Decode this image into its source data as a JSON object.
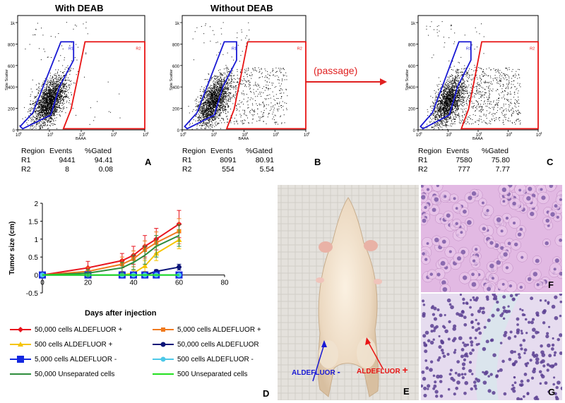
{
  "flow_panels": [
    {
      "title": "With DEAB",
      "letter": "A",
      "stats": {
        "header": [
          "Region",
          "Events",
          "%Gated"
        ],
        "rows": [
          [
            "R1",
            "9441",
            "94.41"
          ],
          [
            "R2",
            "8",
            "0.08"
          ]
        ]
      }
    },
    {
      "title": "Without DEAB",
      "letter": "B",
      "stats": {
        "header": [
          "Region",
          "Events",
          "%Gated"
        ],
        "rows": [
          [
            "R1",
            "8091",
            "80.91"
          ],
          [
            "R2",
            "554",
            "5.54"
          ]
        ]
      }
    },
    {
      "title": "",
      "letter": "C",
      "stats": {
        "header": [
          "Region",
          "Events",
          "%Gated"
        ],
        "rows": [
          [
            "R1",
            "7580",
            "75.80"
          ],
          [
            "R2",
            "777",
            "7.77"
          ]
        ]
      }
    }
  ],
  "flow_axes": {
    "y_label": "Side Scatter",
    "x_label": "BAAA",
    "y_ticks": [
      "1k",
      "800",
      "600",
      "400",
      "200",
      "0"
    ],
    "x_ticks": [
      "10",
      "0",
      "10",
      "1",
      "10",
      "2",
      "10",
      "3",
      "10",
      "4"
    ],
    "region_labels": [
      "R1",
      "R2"
    ]
  },
  "passage_label": "(passage)",
  "colors": {
    "r1_gate": "#1a1ad4",
    "r2_gate": "#e81414",
    "arrow": "#e02020"
  },
  "chart_data": {
    "type": "line",
    "ylabel": "Tumor size (cm)",
    "xlabel": "Days after injection",
    "xlim": [
      0,
      80
    ],
    "ylim": [
      -0.5,
      2
    ],
    "x_ticks": [
      "0",
      "20",
      "40",
      "60",
      "80"
    ],
    "y_ticks": [
      "2",
      "1.5",
      "1",
      "0.5",
      "0",
      "-0.5"
    ],
    "x": [
      0,
      20,
      35,
      40,
      45,
      50,
      60
    ],
    "series": [
      {
        "name": "50,000 cells ALDEFLUOR +",
        "color": "#e8141e",
        "marker": "diamond",
        "values": [
          0,
          0.2,
          0.4,
          0.55,
          0.8,
          1.0,
          1.42
        ],
        "err": [
          0,
          0.18,
          0.2,
          0.25,
          0.3,
          0.3,
          0.38
        ]
      },
      {
        "name": "5,000 cells ALDEFLUOR +",
        "color": "#f07a1e",
        "marker": "square",
        "values": [
          0,
          0.1,
          0.3,
          0.45,
          0.7,
          0.9,
          1.22
        ],
        "err": [
          0,
          0.12,
          0.2,
          0.22,
          0.25,
          0.3,
          0.35
        ]
      },
      {
        "name": "500 cells ALDEFLUOR +",
        "color": "#f5c400",
        "marker": "triangle",
        "values": [
          0,
          0,
          0,
          0.05,
          0.25,
          0.6,
          0.98
        ],
        "err": [
          0,
          0,
          0,
          0.08,
          0.15,
          0.2,
          0.25
        ]
      },
      {
        "name": "50,000 cells ALDEFLUOR",
        "color": "#0a1478",
        "marker": "circle",
        "values": [
          0,
          0,
          0,
          0,
          0,
          0.1,
          0.22
        ],
        "err": [
          0,
          0,
          0,
          0,
          0,
          0.05,
          0.08
        ]
      },
      {
        "name": "5,000 cells ALDEFLUOR -",
        "color": "#1428e0",
        "marker": "bigsquare",
        "values": [
          0,
          0,
          0,
          0,
          0,
          0,
          0
        ],
        "err": [
          0,
          0,
          0,
          0,
          0,
          0,
          0
        ]
      },
      {
        "name": "500 cells ALDEFLUOR -",
        "color": "#4cc8e8",
        "marker": "circle",
        "values": [
          0,
          0,
          0,
          0,
          0,
          0,
          0
        ],
        "err": [
          0,
          0,
          0,
          0,
          0,
          0,
          0
        ]
      },
      {
        "name": "50,000 Unseparated cells",
        "color": "#2e8c3c",
        "marker": "none",
        "values": [
          0,
          0.05,
          0.2,
          0.35,
          0.55,
          0.8,
          1.1
        ],
        "err": [
          0,
          0.1,
          0.15,
          0.2,
          0.25,
          0.3,
          0.3
        ]
      },
      {
        "name": "500 Unseparated cells",
        "color": "#22e01e",
        "marker": "none",
        "values": [
          0,
          0,
          0,
          0,
          0,
          0,
          0
        ],
        "err": [
          0,
          0,
          0,
          0,
          0,
          0,
          0
        ]
      }
    ]
  },
  "lower_labels": {
    "d": "D",
    "e": "E",
    "f": "F",
    "g": "G"
  },
  "mouse_labels": {
    "neg_text": "ALDEFLUOR",
    "neg_sign": "-",
    "pos_text": "ALDEFLUOR",
    "pos_sign": "+"
  }
}
